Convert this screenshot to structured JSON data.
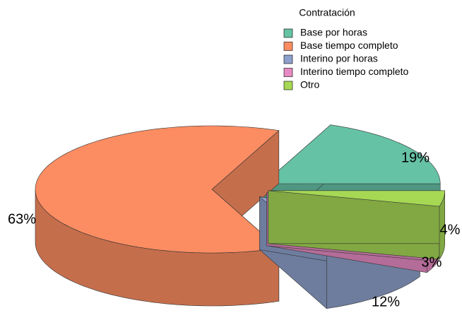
{
  "chart_data": {
    "type": "pie3d",
    "legend_title": "Contratación",
    "categories": [
      "Base por horas",
      "Base tiempo completo",
      "Interino por horas",
      "Interino tiempo completo",
      "Otro"
    ],
    "values": [
      19,
      63,
      12,
      3,
      4
    ],
    "value_labels": [
      "19%",
      "63%",
      "12%",
      "3%",
      "4%"
    ],
    "colors": [
      "#66c2a5",
      "#fc8d62",
      "#8da0cb",
      "#e78ac3",
      "#a6d854"
    ],
    "legend": "top-right"
  }
}
